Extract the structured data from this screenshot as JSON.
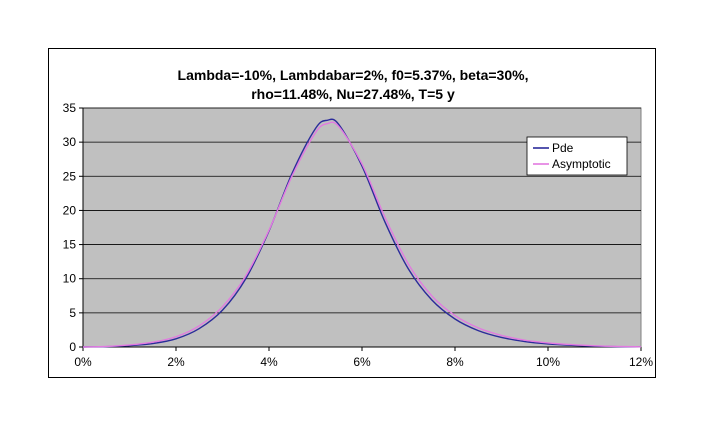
{
  "chart_data": {
    "type": "line",
    "title_lines": [
      "Lambda=-10%, Lambdabar=2%, f0=5.37%, beta=30%,",
      "rho=11.48%, Nu=27.48%, T=5 y"
    ],
    "xlabel": "",
    "ylabel": "",
    "xlim": [
      0,
      12
    ],
    "ylim": [
      0,
      35
    ],
    "x_ticks": [
      "0%",
      "2%",
      "4%",
      "6%",
      "8%",
      "10%",
      "12%"
    ],
    "y_ticks": [
      "0",
      "5",
      "10",
      "15",
      "20",
      "25",
      "30",
      "35"
    ],
    "grid": "horizontal",
    "plot_background": "#c0c0c0",
    "legend_position": "right",
    "x": [
      0,
      0.5,
      1,
      1.5,
      2,
      2.5,
      3,
      3.5,
      4,
      4.5,
      5,
      5.25,
      5.5,
      6,
      6.5,
      7,
      7.5,
      8,
      8.5,
      9,
      9.5,
      10,
      10.5,
      11,
      11.5,
      12
    ],
    "series": [
      {
        "name": "Pde",
        "color": "#2b2b9a",
        "values": [
          0.0,
          0.05,
          0.2,
          0.5,
          1.2,
          2.7,
          5.4,
          10.0,
          17.0,
          25.5,
          32.0,
          33.2,
          32.6,
          26.5,
          18.2,
          11.4,
          6.9,
          4.1,
          2.4,
          1.4,
          0.8,
          0.45,
          0.25,
          0.12,
          0.05,
          0.02
        ]
      },
      {
        "name": "Asymptotic",
        "color": "#e27ae0",
        "values": [
          0.0,
          0.08,
          0.3,
          0.7,
          1.5,
          3.1,
          5.9,
          10.4,
          17.1,
          25.1,
          31.4,
          32.7,
          32.3,
          26.8,
          18.9,
          12.1,
          7.5,
          4.6,
          2.8,
          1.7,
          1.0,
          0.6,
          0.35,
          0.18,
          0.08,
          0.03
        ]
      }
    ]
  }
}
